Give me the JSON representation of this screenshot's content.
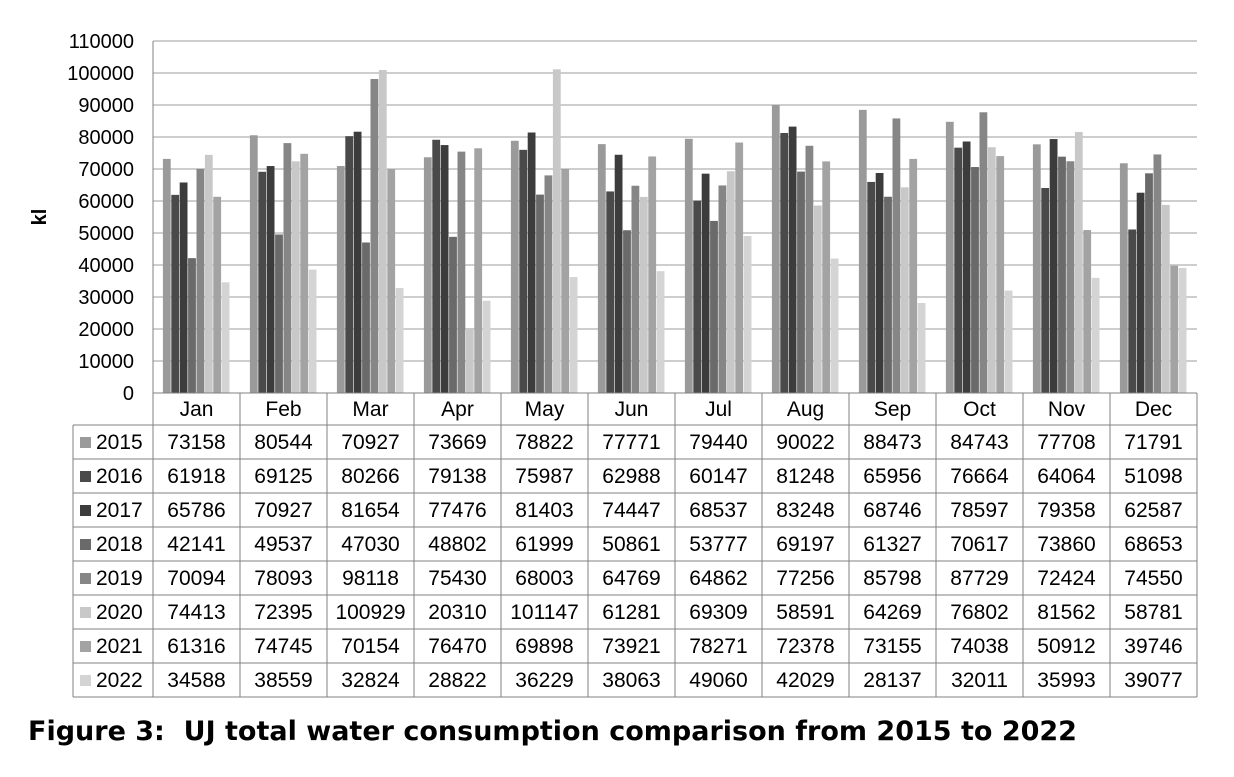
{
  "caption": "Figure 3:  UJ total water consumption comparison from 2015 to 2022",
  "chart_data": {
    "type": "bar",
    "title": "",
    "xlabel": "",
    "ylabel": "kl",
    "ylim": [
      0,
      110000
    ],
    "yticks": [
      0,
      10000,
      20000,
      30000,
      40000,
      50000,
      60000,
      70000,
      80000,
      90000,
      100000,
      110000
    ],
    "grid": true,
    "legend": "data-table",
    "categories": [
      "Jan",
      "Feb",
      "Mar",
      "Apr",
      "May",
      "Jun",
      "Jul",
      "Aug",
      "Sep",
      "Oct",
      "Nov",
      "Dec"
    ],
    "series": [
      {
        "name": "2015",
        "color": "#9a9a9a",
        "values": [
          73158,
          80544,
          70927,
          73669,
          78822,
          77771,
          79440,
          90022,
          88473,
          84743,
          77708,
          71791
        ]
      },
      {
        "name": "2016",
        "color": "#4a4a4a",
        "values": [
          61918,
          69125,
          80266,
          79138,
          75987,
          62988,
          60147,
          81248,
          65956,
          76664,
          64064,
          51098
        ]
      },
      {
        "name": "2017",
        "color": "#3c3c3c",
        "values": [
          65786,
          70927,
          81654,
          77476,
          81403,
          74447,
          68537,
          83248,
          68746,
          78597,
          79358,
          62587
        ]
      },
      {
        "name": "2018",
        "color": "#6a6a6a",
        "values": [
          42141,
          49537,
          47030,
          48802,
          61999,
          50861,
          53777,
          69197,
          61327,
          70617,
          73860,
          68653
        ]
      },
      {
        "name": "2019",
        "color": "#868686",
        "values": [
          70094,
          78093,
          98118,
          75430,
          68003,
          64769,
          64862,
          77256,
          85798,
          87729,
          72424,
          74550
        ]
      },
      {
        "name": "2020",
        "color": "#c8c8c8",
        "values": [
          74413,
          72395,
          100929,
          20310,
          101147,
          61281,
          69309,
          58591,
          64269,
          76802,
          81562,
          58781
        ]
      },
      {
        "name": "2021",
        "color": "#a3a3a3",
        "values": [
          61316,
          74745,
          70154,
          76470,
          69898,
          73921,
          78271,
          72378,
          73155,
          74038,
          50912,
          39746
        ]
      },
      {
        "name": "2022",
        "color": "#d4d4d4",
        "values": [
          34588,
          38559,
          32824,
          28822,
          36229,
          38063,
          49060,
          42029,
          28137,
          32011,
          35993,
          39077
        ]
      }
    ]
  }
}
